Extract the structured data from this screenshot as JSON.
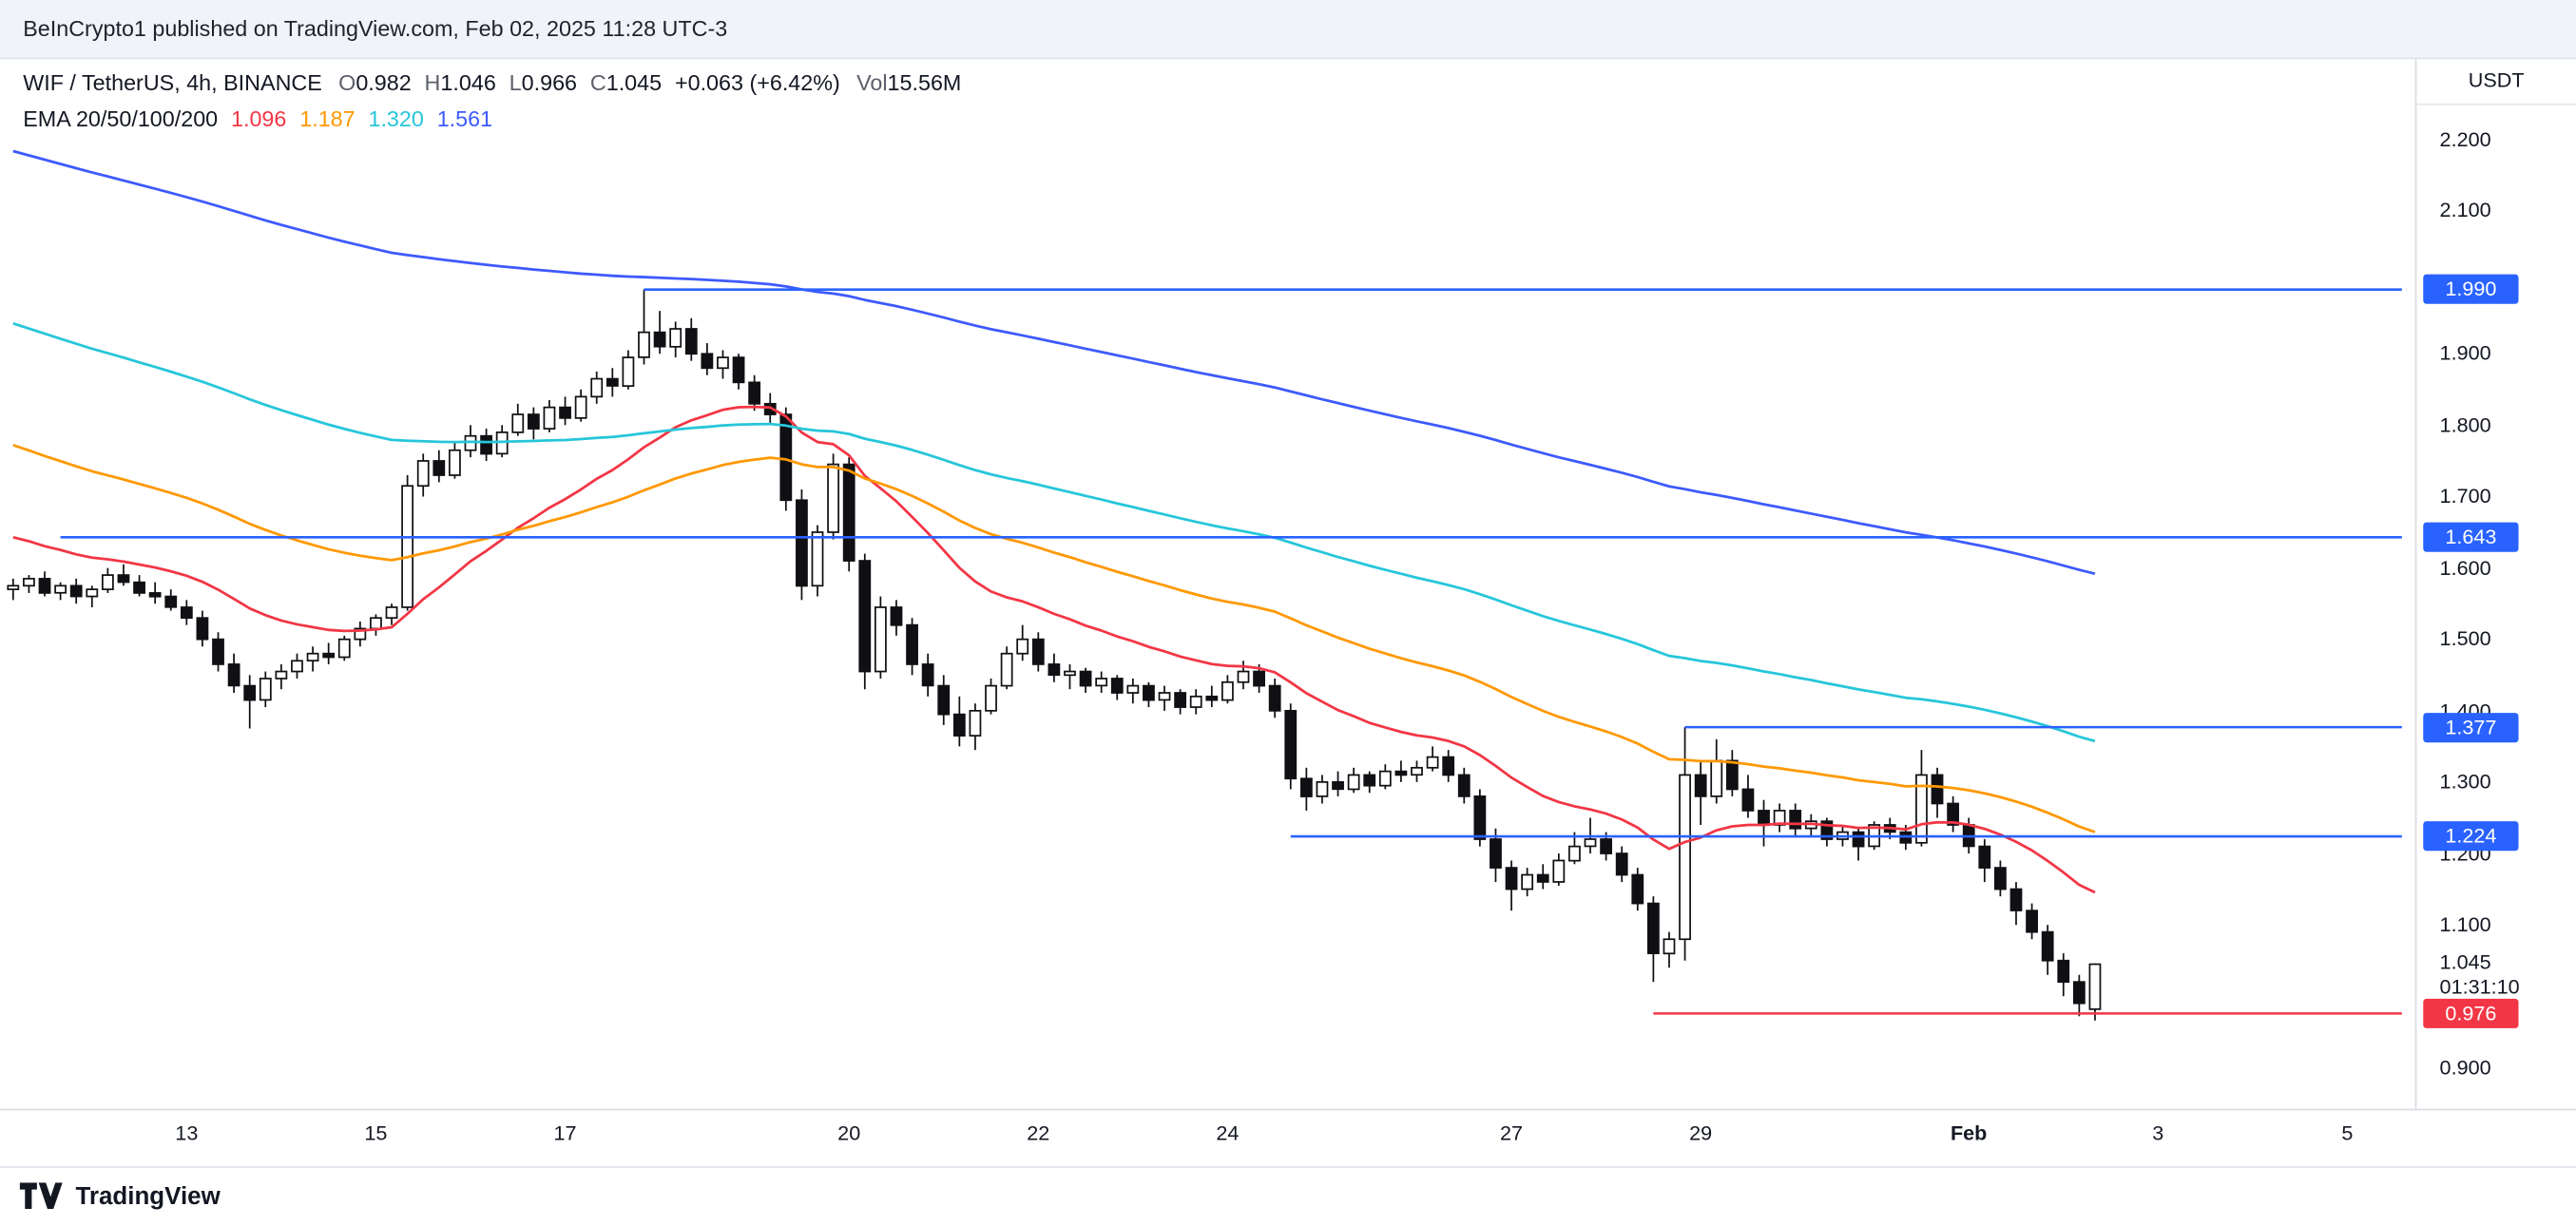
{
  "attribution_bar": {
    "text": "BeInCrypto1 published on TradingView.com, Feb 02, 2025 11:28 UTC-3"
  },
  "header": {
    "symbol": "WIF / TetherUS, 4h, BINANCE",
    "ohlc": [
      {
        "label": "O",
        "value": "0.982"
      },
      {
        "label": "H",
        "value": "1.046"
      },
      {
        "label": "L",
        "value": "0.966"
      },
      {
        "label": "C",
        "value": "1.045"
      }
    ],
    "change": "+0.063 (+6.42%)",
    "volume_label": "Vol",
    "volume_value": "15.56M",
    "indicator_label": "EMA 20/50/100/200",
    "indicator_values": [
      {
        "value": "1.096",
        "color": "#f23645"
      },
      {
        "value": "1.187",
        "color": "#ff9800"
      },
      {
        "value": "1.320",
        "color": "#26c6da"
      },
      {
        "value": "1.561",
        "color": "#3d5afe"
      }
    ]
  },
  "price_axis": {
    "currency": "USDT",
    "last_price": {
      "label": "1.045",
      "value": 1.045
    },
    "countdown": "01:31:10"
  },
  "chart_data": {
    "type": "candlestick",
    "title": "WIF / TetherUS, 4h, BINANCE",
    "interval": "4h",
    "y_axis_range": [
      0.85,
      2.25
    ],
    "grid": false,
    "price_ticks": [
      {
        "label": "2.200",
        "value": 2.2
      },
      {
        "label": "2.100",
        "value": 2.1
      },
      {
        "label": "1.900",
        "value": 1.9
      },
      {
        "label": "1.800",
        "value": 1.8
      },
      {
        "label": "1.700",
        "value": 1.7
      },
      {
        "label": "1.600",
        "value": 1.6
      },
      {
        "label": "1.500",
        "value": 1.5
      },
      {
        "label": "1.400",
        "value": 1.4
      },
      {
        "label": "1.300",
        "value": 1.3
      },
      {
        "label": "1.200",
        "value": 1.2
      },
      {
        "label": "1.100",
        "value": 1.1
      },
      {
        "label": "0.900",
        "value": 0.9
      }
    ],
    "time_ticks": [
      {
        "label": "13",
        "index": 11
      },
      {
        "label": "15",
        "index": 23
      },
      {
        "label": "17",
        "index": 35
      },
      {
        "label": "20",
        "index": 53
      },
      {
        "label": "22",
        "index": 65
      },
      {
        "label": "24",
        "index": 77
      },
      {
        "label": "27",
        "index": 95
      },
      {
        "label": "29",
        "index": 107
      },
      {
        "label": "Feb",
        "index": 124,
        "emphasis": true
      },
      {
        "label": "3",
        "index": 136
      },
      {
        "label": "5",
        "index": 148
      }
    ],
    "levels": [
      {
        "label": "1.990",
        "value": 1.99,
        "color": "#2962ff",
        "start_index": 40
      },
      {
        "label": "1.643",
        "value": 1.643,
        "color": "#2962ff",
        "start_index": 3
      },
      {
        "label": "1.377",
        "value": 1.377,
        "color": "#2962ff",
        "start_index": 106
      },
      {
        "label": "1.224",
        "value": 1.224,
        "color": "#2962ff",
        "start_index": 81
      },
      {
        "label": "0.976",
        "value": 0.976,
        "color": "#f23645",
        "start_index": 104
      }
    ],
    "emas": [
      {
        "period": 20,
        "color": "#f23645",
        "seed": 1.65,
        "current": 1.096
      },
      {
        "period": 50,
        "color": "#ff9800",
        "seed": 1.78,
        "current": 1.187
      },
      {
        "period": 100,
        "color": "#26c6da",
        "seed": 1.95,
        "current": 1.32
      },
      {
        "period": 200,
        "color": "#3d5afe",
        "seed": 2.19,
        "current": 1.561
      }
    ],
    "candle_colors": {
      "up_fill": "#ffffff",
      "down_fill": "#101014",
      "border": "#101014"
    },
    "candles": [
      [
        1.57,
        1.585,
        1.555,
        1.575
      ],
      [
        1.575,
        1.59,
        1.565,
        1.585
      ],
      [
        1.585,
        1.595,
        1.56,
        1.565
      ],
      [
        1.565,
        1.58,
        1.555,
        1.575
      ],
      [
        1.575,
        1.585,
        1.55,
        1.56
      ],
      [
        1.56,
        1.575,
        1.545,
        1.57
      ],
      [
        1.57,
        1.6,
        1.565,
        1.59
      ],
      [
        1.59,
        1.605,
        1.575,
        1.58
      ],
      [
        1.58,
        1.59,
        1.56,
        1.565
      ],
      [
        1.565,
        1.58,
        1.55,
        1.56
      ],
      [
        1.56,
        1.57,
        1.54,
        1.545
      ],
      [
        1.545,
        1.555,
        1.52,
        1.53
      ],
      [
        1.53,
        1.54,
        1.49,
        1.5
      ],
      [
        1.5,
        1.51,
        1.455,
        1.465
      ],
      [
        1.465,
        1.48,
        1.425,
        1.435
      ],
      [
        1.435,
        1.45,
        1.375,
        1.415
      ],
      [
        1.415,
        1.455,
        1.405,
        1.445
      ],
      [
        1.445,
        1.465,
        1.43,
        1.455
      ],
      [
        1.455,
        1.48,
        1.445,
        1.47
      ],
      [
        1.47,
        1.49,
        1.455,
        1.48
      ],
      [
        1.48,
        1.495,
        1.465,
        1.475
      ],
      [
        1.475,
        1.505,
        1.47,
        1.5
      ],
      [
        1.5,
        1.525,
        1.49,
        1.515
      ],
      [
        1.515,
        1.535,
        1.505,
        1.53
      ],
      [
        1.53,
        1.55,
        1.52,
        1.545
      ],
      [
        1.545,
        1.73,
        1.54,
        1.715
      ],
      [
        1.715,
        1.76,
        1.7,
        1.75
      ],
      [
        1.75,
        1.765,
        1.72,
        1.73
      ],
      [
        1.73,
        1.775,
        1.725,
        1.765
      ],
      [
        1.765,
        1.8,
        1.755,
        1.785
      ],
      [
        1.785,
        1.795,
        1.75,
        1.76
      ],
      [
        1.76,
        1.8,
        1.755,
        1.79
      ],
      [
        1.79,
        1.83,
        1.785,
        1.815
      ],
      [
        1.815,
        1.825,
        1.78,
        1.795
      ],
      [
        1.795,
        1.835,
        1.79,
        1.825
      ],
      [
        1.825,
        1.84,
        1.8,
        1.81
      ],
      [
        1.81,
        1.85,
        1.805,
        1.84
      ],
      [
        1.84,
        1.875,
        1.83,
        1.865
      ],
      [
        1.865,
        1.88,
        1.84,
        1.855
      ],
      [
        1.855,
        1.905,
        1.85,
        1.895
      ],
      [
        1.895,
        1.99,
        1.885,
        1.93
      ],
      [
        1.93,
        1.96,
        1.9,
        1.91
      ],
      [
        1.91,
        1.945,
        1.895,
        1.935
      ],
      [
        1.935,
        1.95,
        1.89,
        1.9
      ],
      [
        1.9,
        1.915,
        1.87,
        1.88
      ],
      [
        1.88,
        1.905,
        1.865,
        1.895
      ],
      [
        1.895,
        1.9,
        1.85,
        1.86
      ],
      [
        1.86,
        1.87,
        1.82,
        1.83
      ],
      [
        1.83,
        1.845,
        1.8,
        1.815
      ],
      [
        1.815,
        1.825,
        1.68,
        1.695
      ],
      [
        1.695,
        1.71,
        1.555,
        1.575
      ],
      [
        1.575,
        1.66,
        1.56,
        1.65
      ],
      [
        1.65,
        1.76,
        1.64,
        1.745
      ],
      [
        1.745,
        1.755,
        1.595,
        1.61
      ],
      [
        1.61,
        1.62,
        1.43,
        1.455
      ],
      [
        1.455,
        1.56,
        1.445,
        1.545
      ],
      [
        1.545,
        1.555,
        1.505,
        1.52
      ],
      [
        1.52,
        1.53,
        1.45,
        1.465
      ],
      [
        1.465,
        1.48,
        1.42,
        1.435
      ],
      [
        1.435,
        1.45,
        1.38,
        1.395
      ],
      [
        1.395,
        1.42,
        1.35,
        1.365
      ],
      [
        1.365,
        1.41,
        1.345,
        1.4
      ],
      [
        1.4,
        1.445,
        1.395,
        1.435
      ],
      [
        1.435,
        1.49,
        1.43,
        1.48
      ],
      [
        1.48,
        1.52,
        1.47,
        1.5
      ],
      [
        1.5,
        1.51,
        1.455,
        1.465
      ],
      [
        1.465,
        1.48,
        1.44,
        1.45
      ],
      [
        1.45,
        1.465,
        1.43,
        1.455
      ],
      [
        1.455,
        1.46,
        1.425,
        1.435
      ],
      [
        1.435,
        1.455,
        1.425,
        1.445
      ],
      [
        1.445,
        1.45,
        1.415,
        1.425
      ],
      [
        1.425,
        1.445,
        1.41,
        1.435
      ],
      [
        1.435,
        1.44,
        1.405,
        1.415
      ],
      [
        1.415,
        1.435,
        1.4,
        1.425
      ],
      [
        1.425,
        1.43,
        1.395,
        1.405
      ],
      [
        1.405,
        1.43,
        1.395,
        1.42
      ],
      [
        1.42,
        1.435,
        1.405,
        1.415
      ],
      [
        1.415,
        1.45,
        1.41,
        1.44
      ],
      [
        1.44,
        1.47,
        1.43,
        1.455
      ],
      [
        1.455,
        1.465,
        1.425,
        1.435
      ],
      [
        1.435,
        1.445,
        1.39,
        1.4
      ],
      [
        1.4,
        1.41,
        1.29,
        1.305
      ],
      [
        1.305,
        1.32,
        1.26,
        1.28
      ],
      [
        1.28,
        1.31,
        1.27,
        1.3
      ],
      [
        1.3,
        1.315,
        1.28,
        1.29
      ],
      [
        1.29,
        1.32,
        1.285,
        1.31
      ],
      [
        1.31,
        1.315,
        1.285,
        1.295
      ],
      [
        1.295,
        1.325,
        1.29,
        1.315
      ],
      [
        1.315,
        1.33,
        1.3,
        1.31
      ],
      [
        1.31,
        1.33,
        1.3,
        1.32
      ],
      [
        1.32,
        1.35,
        1.315,
        1.335
      ],
      [
        1.335,
        1.345,
        1.3,
        1.31
      ],
      [
        1.31,
        1.32,
        1.27,
        1.28
      ],
      [
        1.28,
        1.29,
        1.21,
        1.22
      ],
      [
        1.22,
        1.235,
        1.16,
        1.18
      ],
      [
        1.18,
        1.19,
        1.12,
        1.15
      ],
      [
        1.15,
        1.18,
        1.14,
        1.17
      ],
      [
        1.17,
        1.185,
        1.15,
        1.16
      ],
      [
        1.16,
        1.2,
        1.155,
        1.19
      ],
      [
        1.19,
        1.23,
        1.185,
        1.21
      ],
      [
        1.21,
        1.25,
        1.2,
        1.22
      ],
      [
        1.22,
        1.23,
        1.19,
        1.2
      ],
      [
        1.2,
        1.21,
        1.16,
        1.17
      ],
      [
        1.17,
        1.18,
        1.12,
        1.13
      ],
      [
        1.13,
        1.14,
        1.02,
        1.06
      ],
      [
        1.06,
        1.09,
        1.04,
        1.08
      ],
      [
        1.08,
        1.377,
        1.05,
        1.31
      ],
      [
        1.31,
        1.33,
        1.24,
        1.28
      ],
      [
        1.28,
        1.36,
        1.27,
        1.33
      ],
      [
        1.33,
        1.345,
        1.28,
        1.29
      ],
      [
        1.29,
        1.31,
        1.25,
        1.26
      ],
      [
        1.26,
        1.275,
        1.21,
        1.24
      ],
      [
        1.24,
        1.27,
        1.23,
        1.26
      ],
      [
        1.26,
        1.27,
        1.225,
        1.235
      ],
      [
        1.235,
        1.255,
        1.225,
        1.245
      ],
      [
        1.245,
        1.25,
        1.21,
        1.22
      ],
      [
        1.22,
        1.24,
        1.21,
        1.23
      ],
      [
        1.23,
        1.235,
        1.19,
        1.21
      ],
      [
        1.21,
        1.245,
        1.205,
        1.24
      ],
      [
        1.24,
        1.25,
        1.22,
        1.23
      ],
      [
        1.23,
        1.24,
        1.205,
        1.215
      ],
      [
        1.215,
        1.345,
        1.21,
        1.31
      ],
      [
        1.31,
        1.32,
        1.25,
        1.27
      ],
      [
        1.27,
        1.28,
        1.23,
        1.24
      ],
      [
        1.24,
        1.25,
        1.2,
        1.21
      ],
      [
        1.21,
        1.22,
        1.16,
        1.18
      ],
      [
        1.18,
        1.19,
        1.14,
        1.15
      ],
      [
        1.15,
        1.16,
        1.1,
        1.12
      ],
      [
        1.12,
        1.13,
        1.08,
        1.09
      ],
      [
        1.09,
        1.1,
        1.03,
        1.05
      ],
      [
        1.05,
        1.06,
        1.0,
        1.02
      ],
      [
        1.02,
        1.03,
        0.972,
        0.99
      ],
      [
        0.982,
        1.046,
        0.966,
        1.045
      ]
    ]
  },
  "footer": {
    "brand": "TradingView"
  }
}
